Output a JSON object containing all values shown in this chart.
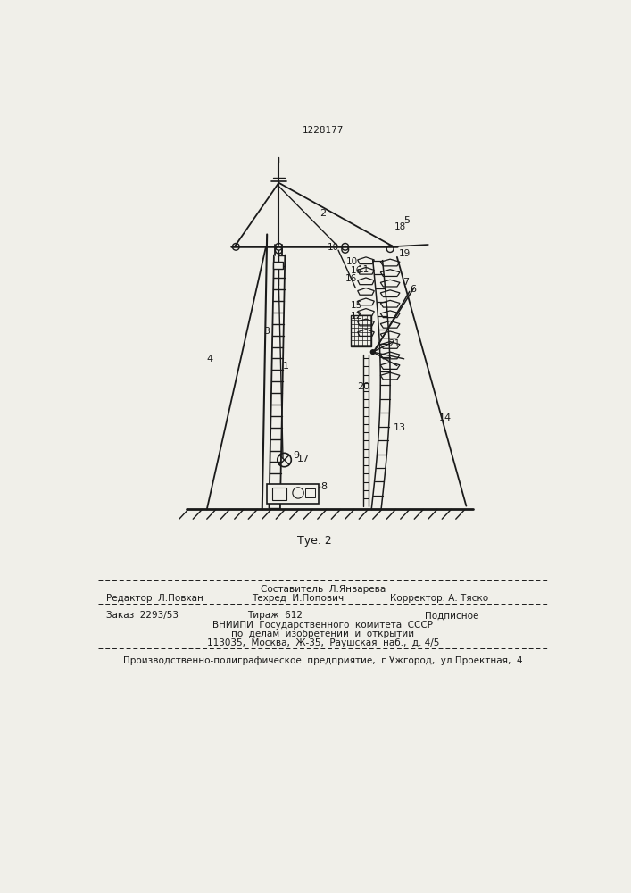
{
  "patent_number": "1228177",
  "fig_label": "Τуе. 2",
  "background_color": "#f0efe9",
  "line_color": "#1a1a1a",
  "bottom_text": {
    "sostavitel": "Составитель  Л.Январева",
    "redaktor": "Редактор  Л.Повхан",
    "tehred": "Техред  И.Попович",
    "korrektor": "Корректор. А. Тяско",
    "order": "Заказ  2293/53",
    "tirazh": "Тираж  612",
    "podpisnoe": "Подписное",
    "vnipi": "ВНИИПИ  Государственного  комитета  СССР",
    "po_delam": "по  делам  изобретений  и  открытий",
    "address": "113035,  Москва,  Ж-35,  Раушская  наб.,  д. 4/5",
    "zavod": "Производственно-полиграфическое  предприятие,  г.Ужгород,  ул.Проектная,  4"
  }
}
